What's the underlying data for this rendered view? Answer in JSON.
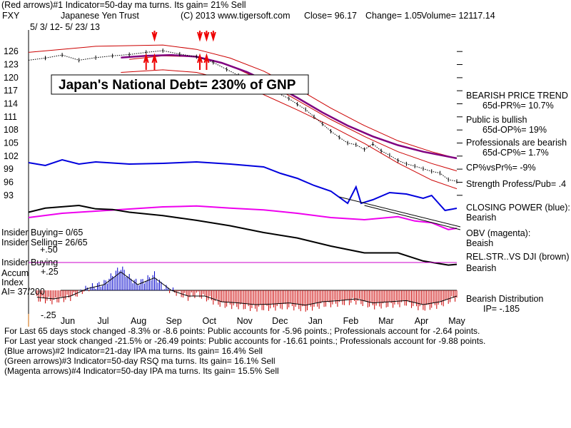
{
  "header": {
    "red_arrows": "(Red arrows)#1 Indicator=50-day ma turns. Its gain= 21% Sell",
    "ticker": "FXY",
    "name": "Japanese Yen Trust",
    "copyright": "(C) 2013 www.tigersoft.com",
    "close": "Close=  96.17",
    "change": "Change= 1.05",
    "volume": "Volume= 12117.14",
    "date_range": "5/ 3/ 12-  5/ 23/ 13"
  },
  "callout": "Japan's National Debt= 230% of GNP",
  "right_panel": {
    "trend_title": "BEARISH PRICE TREND",
    "pr": "65d-PR%= 10.7%",
    "public": "Public is bullish",
    "op": "65d-OP%= 19%",
    "professionals": "Professionals are bearish",
    "cp": "65d-CP%= 1.7%",
    "cpvspr": "CP%vsPr%= -9%",
    "strength": "Strength Profess/Pub= .4",
    "closing_power": "CLOSING POWER (blue):",
    "cp_state": "Bearish",
    "obv": "OBV (magenta):",
    "obv_state": "Beaish",
    "relstr": "REL.STR..VS DJI (brown)",
    "relstr_state": "Bearish",
    "distribution": "Bearish Distribution",
    "ip": "IP= -.185"
  },
  "left_panel": {
    "insider_buying": "Insider Buying= 0/65",
    "insider_selling": "Insider Selling= 26/65",
    "insider_buying_line": "Insider Buying",
    "accum": "Accum",
    "index": "Index",
    "ai": "AI= 37/200",
    "plus50": "+.50",
    "plus25": "+.25",
    "minus25": "-.25"
  },
  "footer": {
    "line1": "For Last 65 days stock changed -8.3% or -8.6 points:  Public accounts for -5.96 points.;  Professionals account for -2.64 points.",
    "line2": "For Last year stock changed -21.5% or -26.49 points:  Public accounts for -16.61 points.;  Professionals account for -9.88 points.",
    "line3": "(Blue arrows)#2 Indicator=21-day IPA ma turns. Its gain= 16.4% Sell",
    "line4": "(Green arrows)#3 Indicator=50-day RSQ ma turns. Its gain= 16.1% Sell",
    "line5": "(Magenta arrows)#4 Indicator=50-day IPA ma turns. Its gain= 15.5% Sell"
  },
  "colors": {
    "price": "#000000",
    "bands": "#cc0000",
    "ma": "#800080",
    "closing_power": "#0000dd",
    "obv": "#ee00ee",
    "relstr": "#000000",
    "accum_pos": "#0000cc",
    "accum_neg": "#cc0000"
  },
  "chart_data": {
    "type": "line",
    "title": "FXY Japanese Yen Trust",
    "x_labels": [
      "Jun",
      "Jul",
      "Aug",
      "Sep",
      "Oct",
      "Nov",
      "Dec",
      "Jan",
      "Feb",
      "Mar",
      "Apr",
      "May"
    ],
    "y_ticks": [
      126,
      123,
      120,
      117,
      114,
      111,
      108,
      105,
      102,
      99,
      96,
      93
    ],
    "ylim": [
      91,
      128
    ],
    "price": {
      "t": [
        0,
        10,
        20,
        30,
        40,
        50,
        60,
        70,
        80,
        90,
        100,
        110,
        118,
        125,
        135,
        145,
        155,
        160,
        165,
        170,
        175,
        180,
        185,
        190,
        195,
        200,
        205,
        210,
        215,
        220,
        225,
        230,
        235,
        240,
        245,
        250,
        255
      ],
      "v": [
        124.0,
        124.5,
        125.2,
        124.0,
        124.6,
        125.0,
        125.3,
        125.8,
        126.2,
        125.4,
        124.8,
        123.5,
        121.9,
        120.5,
        118.8,
        117.1,
        115.2,
        113.9,
        112.7,
        111.0,
        109.4,
        107.7,
        106.3,
        105.0,
        104.6,
        103.5,
        104.8,
        103.2,
        102.2,
        101.0,
        100.2,
        99.7,
        99.1,
        98.5,
        98.1,
        96.6,
        96.2
      ]
    },
    "ma50": {
      "t": [
        55,
        70,
        85,
        100,
        115,
        130,
        145,
        160,
        175,
        190,
        205,
        220,
        235,
        255
      ],
      "v": [
        124.6,
        125.0,
        125.2,
        124.8,
        123.4,
        121.3,
        118.6,
        115.4,
        112.0,
        109.0,
        106.5,
        104.5,
        103.0,
        101.5
      ]
    },
    "upper_band": {
      "t": [
        0,
        40,
        80,
        100,
        120,
        140,
        160,
        180,
        200,
        220,
        240,
        255
      ],
      "v": [
        125.8,
        127.2,
        127.5,
        126.5,
        124.5,
        121.5,
        117.5,
        113.0,
        109.0,
        105.5,
        103.0,
        101.5
      ]
    },
    "lower_band": {
      "t": [
        55,
        80,
        100,
        120,
        140,
        160,
        180,
        200,
        220,
        240,
        255
      ],
      "v": [
        121.2,
        121.8,
        121.2,
        119.3,
        116.1,
        112.6,
        108.9,
        104.9,
        100.4,
        96.5,
        94.5
      ]
    },
    "ma_upper_thin": {
      "t": [
        60,
        80,
        100,
        120,
        140,
        160,
        180,
        200,
        220,
        240,
        255
      ],
      "v": [
        124.2,
        125.0,
        124.8,
        122.8,
        119.2,
        114.8,
        110.4,
        106.5,
        103.0,
        100.3,
        98.6
      ]
    },
    "red_down_arrows_t": [
      75,
      102,
      106,
      110
    ],
    "red_up_arrows_t": [
      70,
      75,
      102,
      106
    ],
    "closing_power": {
      "t": [
        0,
        10,
        20,
        30,
        40,
        60,
        80,
        100,
        120,
        140,
        150,
        160,
        170,
        180,
        190,
        195,
        198,
        205,
        215,
        225,
        235,
        240,
        248,
        255
      ],
      "v": [
        0.62,
        0.58,
        0.66,
        0.6,
        0.63,
        0.6,
        0.61,
        0.63,
        0.6,
        0.56,
        0.47,
        0.4,
        0.3,
        0.22,
        0.05,
        0.28,
        0.05,
        0.1,
        0.2,
        0.18,
        0.12,
        0.16,
        -0.05,
        -0.02
      ]
    },
    "obv": {
      "t": [
        0,
        20,
        40,
        60,
        80,
        100,
        120,
        140,
        160,
        180,
        200,
        220,
        230,
        240,
        250,
        255
      ],
      "v": [
        0.0,
        0.1,
        0.15,
        0.2,
        0.25,
        0.27,
        0.22,
        0.18,
        0.1,
        0.0,
        -0.05,
        0.02,
        -0.08,
        -0.12,
        -0.28,
        -0.25
      ]
    },
    "relstr": {
      "t": [
        0,
        10,
        20,
        30,
        40,
        50,
        60,
        80,
        100,
        120,
        140,
        160,
        180,
        200,
        220,
        235,
        250,
        255
      ],
      "v": [
        0.5,
        0.56,
        0.58,
        0.6,
        0.55,
        0.54,
        0.5,
        0.45,
        0.38,
        0.3,
        0.2,
        0.12,
        0.0,
        -0.1,
        -0.1,
        -0.22,
        -0.28,
        -0.27
      ]
    },
    "accum_index": {
      "t": [
        5,
        15,
        25,
        35,
        45,
        55,
        60,
        65,
        70,
        75,
        80,
        85,
        90,
        95,
        100,
        105,
        110,
        115,
        125,
        135,
        145,
        155,
        165,
        175,
        185,
        195,
        205,
        215,
        225,
        235,
        245,
        250,
        255
      ],
      "v": [
        -0.12,
        -0.15,
        -0.1,
        0.03,
        0.1,
        0.32,
        0.18,
        0.1,
        0.15,
        0.22,
        0.05,
        0.0,
        -0.05,
        -0.1,
        -0.05,
        -0.1,
        -0.15,
        -0.2,
        -0.22,
        -0.25,
        -0.24,
        -0.22,
        -0.26,
        -0.2,
        -0.18,
        -0.15,
        -0.22,
        -0.2,
        -0.18,
        -0.25,
        -0.2,
        -0.15,
        -0.1
      ]
    },
    "accum_ylim": [
      -0.28,
      0.35
    ],
    "accum_ticks": [
      "+.50",
      "+.25",
      "-.25"
    ]
  }
}
